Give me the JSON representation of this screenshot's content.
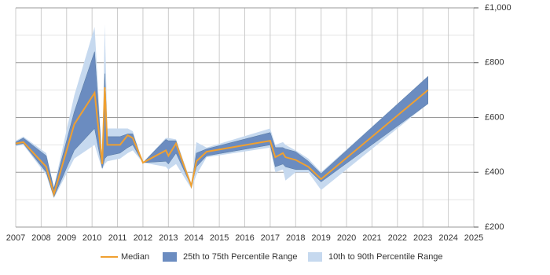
{
  "chart_data": {
    "type": "band-line",
    "x": [
      2007.0,
      2007.3,
      2008.2,
      2008.5,
      2009.3,
      2010.1,
      2010.4,
      2010.5,
      2010.6,
      2011.1,
      2011.4,
      2011.6,
      2012.0,
      2012.9,
      2013.0,
      2013.3,
      2013.9,
      2014.1,
      2014.5,
      2017.0,
      2017.2,
      2017.5,
      2017.6,
      2018.0,
      2018.5,
      2019.0,
      2023.2
    ],
    "series": [
      {
        "name": "Median",
        "color": "#f0a030",
        "values": [
          505,
          510,
          420,
          320,
          575,
          690,
          430,
          710,
          500,
          500,
          535,
          525,
          435,
          480,
          460,
          505,
          350,
          440,
          475,
          515,
          455,
          470,
          455,
          445,
          420,
          375,
          700
        ]
      },
      {
        "name": "25th to 75th Percentile Range",
        "color": "#6b8cc0",
        "low": [
          500,
          505,
          400,
          310,
          480,
          560,
          415,
          450,
          460,
          470,
          490,
          500,
          435,
          440,
          430,
          470,
          350,
          420,
          460,
          500,
          420,
          430,
          420,
          410,
          410,
          365,
          650
        ],
        "high": [
          510,
          525,
          460,
          340,
          620,
          840,
          430,
          760,
          530,
          530,
          540,
          540,
          435,
          520,
          515,
          515,
          350,
          470,
          485,
          545,
          490,
          490,
          485,
          475,
          440,
          395,
          750
        ]
      },
      {
        "name": "10th to 90th Percentile Range",
        "color": "#c6d9ef",
        "low": [
          495,
          500,
          390,
          305,
          450,
          500,
          410,
          430,
          440,
          450,
          470,
          480,
          435,
          420,
          410,
          430,
          340,
          390,
          455,
          490,
          400,
          410,
          370,
          400,
          400,
          335,
          650
        ],
        "high": [
          515,
          530,
          470,
          345,
          680,
          930,
          440,
          940,
          560,
          560,
          560,
          550,
          435,
          525,
          525,
          520,
          360,
          510,
          490,
          560,
          500,
          510,
          500,
          480,
          450,
          400,
          750
        ]
      }
    ],
    "xlim": [
      2007,
      2025
    ],
    "xticks": [
      2007,
      2008,
      2009,
      2010,
      2011,
      2012,
      2013,
      2014,
      2015,
      2016,
      2017,
      2018,
      2019,
      2020,
      2021,
      2022,
      2023,
      2024,
      2025
    ],
    "ylim": [
      200,
      1000
    ],
    "yticks": [
      {
        "value": 200,
        "label": "£200"
      },
      {
        "value": 400,
        "label": "£400"
      },
      {
        "value": 600,
        "label": "£600"
      },
      {
        "value": 800,
        "label": "£800"
      },
      {
        "value": 1000,
        "label": "£1,000"
      }
    ],
    "y_minor_grid": [
      300,
      500,
      700,
      900
    ],
    "grid": true,
    "legend": "bottom"
  }
}
